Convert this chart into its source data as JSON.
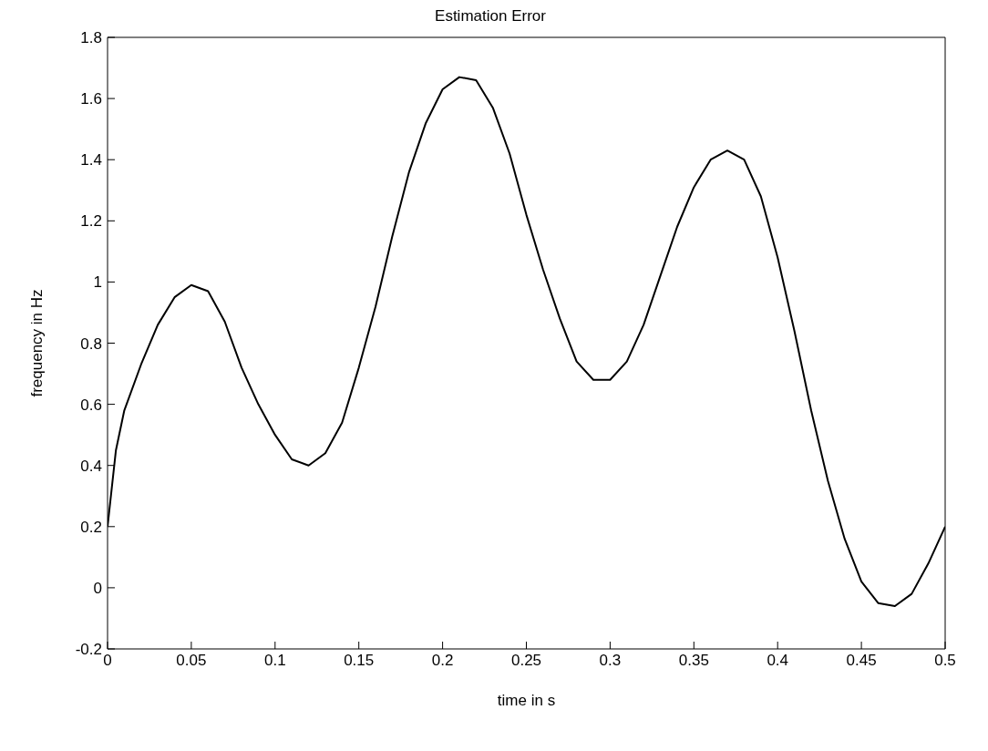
{
  "chart_data": {
    "type": "line",
    "title": "Estimation Error",
    "xlabel": "time in s",
    "ylabel": "frequency in Hz",
    "x": [
      0,
      0.005,
      0.01,
      0.02,
      0.03,
      0.04,
      0.05,
      0.06,
      0.07,
      0.08,
      0.09,
      0.1,
      0.11,
      0.12,
      0.13,
      0.14,
      0.15,
      0.16,
      0.17,
      0.18,
      0.19,
      0.2,
      0.21,
      0.22,
      0.23,
      0.24,
      0.25,
      0.26,
      0.27,
      0.28,
      0.29,
      0.3,
      0.31,
      0.32,
      0.33,
      0.34,
      0.35,
      0.36,
      0.37,
      0.38,
      0.39,
      0.4,
      0.41,
      0.42,
      0.43,
      0.44,
      0.45,
      0.46,
      0.47,
      0.48,
      0.49,
      0.5
    ],
    "series": [
      {
        "color": "#000000",
        "values": [
          0.2,
          0.45,
          0.58,
          0.73,
          0.86,
          0.95,
          0.99,
          0.97,
          0.87,
          0.72,
          0.6,
          0.5,
          0.42,
          0.4,
          0.44,
          0.54,
          0.72,
          0.92,
          1.15,
          1.36,
          1.52,
          1.63,
          1.67,
          1.66,
          1.57,
          1.42,
          1.22,
          1.04,
          0.88,
          0.74,
          0.68,
          0.68,
          0.74,
          0.86,
          1.02,
          1.18,
          1.31,
          1.4,
          1.43,
          1.4,
          1.28,
          1.08,
          0.84,
          0.58,
          0.35,
          0.16,
          0.02,
          -0.05,
          -0.06,
          -0.02,
          0.08,
          0.2
        ]
      }
    ],
    "xlim": [
      0,
      0.5
    ],
    "xticks": [
      0,
      0.05,
      0.1,
      0.15,
      0.2,
      0.25,
      0.3,
      0.35,
      0.4,
      0.45,
      0.5
    ],
    "ylim": [
      -0.2,
      1.8
    ],
    "yticks": [
      -0.2,
      0,
      0.2,
      0.4,
      0.6,
      0.8,
      1,
      1.2,
      1.4,
      1.6,
      1.8
    ],
    "grid": false,
    "legend": false,
    "marker": "none",
    "line_style": "solid"
  }
}
